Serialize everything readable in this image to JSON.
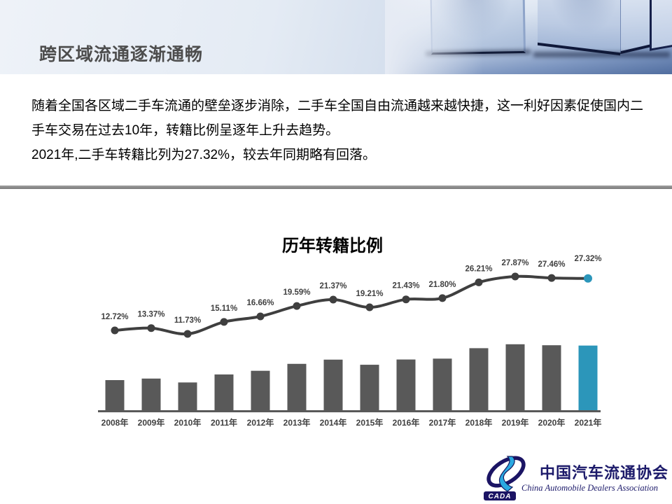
{
  "slide": {
    "header": {
      "title": "跨区域流通逐渐通畅"
    },
    "body": {
      "paragraph1": "随着全国各区域二手车流通的壁垒逐步消除，二手车全国自由流通越来越快捷，这一利好因素促使国内二手车交易在过去10年，转籍比例呈逐年上升去趋势。",
      "paragraph2": "2021年,二手车转籍比列为27.32%，较去年同期略有回落。"
    },
    "footer_logo": {
      "acronym": "CADA",
      "name_zh": "中国汽车流通协会",
      "name_en": "China Automobile Dealers Association"
    }
  },
  "chart_data": {
    "type": "bar+line",
    "title": "历年转籍比例",
    "categories": [
      "2008年",
      "2009年",
      "2010年",
      "2011年",
      "2012年",
      "2013年",
      "2014年",
      "2015年",
      "2016年",
      "2017年",
      "2018年",
      "2019年",
      "2020年",
      "2021年"
    ],
    "values": [
      12.72,
      13.37,
      11.73,
      15.11,
      16.66,
      19.59,
      21.37,
      19.21,
      21.43,
      21.8,
      26.21,
      27.87,
      27.46,
      27.32
    ],
    "data_labels": [
      "12.72%",
      "13.37%",
      "11.73%",
      "15.11%",
      "16.66%",
      "19.59%",
      "21.37%",
      "19.21%",
      "21.43%",
      "21.80%",
      "26.21%",
      "27.87%",
      "27.46%",
      "27.32%"
    ],
    "value_suffix": "%",
    "highlight_index": 13,
    "colors": {
      "bar": "#595959",
      "line": "#3F3F3F",
      "marker": "#3F3F3F",
      "highlight": "#2C96BA",
      "label": "#404040",
      "axis": "#595959"
    },
    "xlabel": "",
    "ylabel": "",
    "legend": "none",
    "grid": false,
    "y_axis": "hidden"
  }
}
